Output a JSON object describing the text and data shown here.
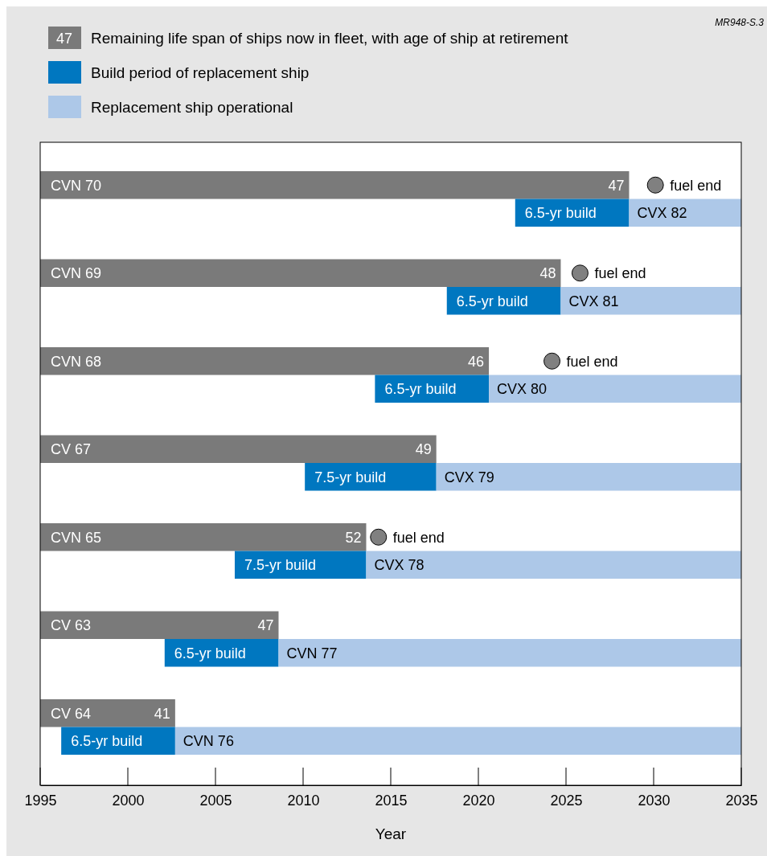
{
  "chart_data": {
    "type": "bar",
    "orientation": "horizontal",
    "xlabel": "Year",
    "legend": "top left",
    "marker": "circle",
    "categories": [
      "CVN 70",
      "CVN 69",
      "CVN 68",
      "CV 67",
      "CVN 65",
      "CV 63",
      "CV 64"
    ],
    "xlim": [
      1995,
      2035
    ],
    "xticks": [
      1995,
      2000,
      2005,
      2010,
      2015,
      2020,
      2025,
      2030,
      2035
    ],
    "annotations": [
      "47",
      "MR948-S.3",
      {
        "text": "47",
        "x": 2028.6,
        "y": "CVN 70"
      },
      {
        "text": "48",
        "x": 2024.7,
        "y": "CVN 69"
      },
      {
        "text": "46",
        "x": 2020.6,
        "y": "CVN 68"
      },
      {
        "text": "49",
        "x": 2017.6,
        "y": "CV 67"
      },
      {
        "text": "52",
        "x": 2013.6,
        "y": "CVN 65"
      },
      {
        "text": "47",
        "x": 2008.6,
        "y": "CV 63"
      },
      {
        "text": "41",
        "x": 2002.7,
        "y": "CV 64"
      }
    ],
    "series": [
      {
        "name": "Remaining life span of ships now in fleet, with age of ship at retirement",
        "color": "#7a7a7a",
        "base": [
          1995,
          1995,
          1995,
          1995,
          1995,
          1995,
          1995
        ],
        "values": [
          33.6,
          29.7,
          25.6,
          22.6,
          18.6,
          13.6,
          7.7
        ]
      },
      {
        "name": "Build period of replacement ship",
        "color": "#0077c0",
        "base": [
          2022.1,
          2018.2,
          2014.1,
          2010.1,
          2006.1,
          2002.1,
          1996.2
        ],
        "values": [
          6.5,
          6.5,
          6.5,
          7.5,
          7.5,
          6.5,
          6.5
        ],
        "value_labels": [
          "6.5-yr build",
          "6.5-yr build",
          "6.5-yr build",
          "7.5-yr build",
          "7.5-yr build",
          "6.5-yr build",
          "6.5-yr build"
        ]
      },
      {
        "name": "Replacement ship operational",
        "color": "#adc8e8",
        "base": [
          2028.6,
          2024.7,
          2020.6,
          2017.6,
          2013.6,
          2008.6,
          2002.7
        ],
        "values": [
          6.4,
          10.3,
          14.4,
          17.4,
          21.4,
          26.4,
          32.3
        ],
        "value_labels": [
          "CVX 82",
          "CVX 81",
          "CVX 80",
          "CVX 79",
          "CVX 78",
          "CVN 77",
          "CVN 76"
        ]
      },
      {
        "type": "scatter",
        "name": "fuel end",
        "color": "#808080",
        "values": [
          2030.1,
          2025.8,
          2024.2,
          null,
          2014.3,
          null,
          null
        ]
      }
    ]
  }
}
